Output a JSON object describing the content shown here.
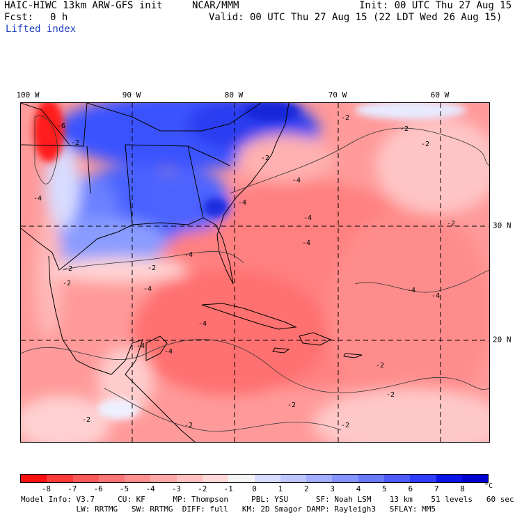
{
  "header": {
    "title": "HAIC-HIWC 13km ARW-GFS init",
    "org": "NCAR/MMM",
    "init": "Init: 00 UTC Thu 27 Aug 15",
    "fcst_label": "Fcst:",
    "fcst_value": "0 h",
    "valid": "Valid: 00 UTC Thu 27 Aug 15 (22 LDT Wed 26 Aug 15)",
    "field": "Lifted index"
  },
  "map": {
    "lon_labels": [
      "100 W",
      "90 W",
      "80 W",
      "70 W",
      "60 W"
    ],
    "lat_labels": [
      "30 N",
      "20 N"
    ],
    "contour_labels": [
      "-2",
      "-4",
      "-6"
    ]
  },
  "colorbar": {
    "ticks": [
      "-8",
      "-7",
      "-6",
      "-5",
      "-4",
      "-3",
      "-2",
      "-1",
      "0",
      "1",
      "2",
      "3",
      "4",
      "5",
      "6",
      "7",
      "8"
    ],
    "unit": "°C",
    "colors": [
      "#ff1010",
      "#ff3a3a",
      "#ff5a5a",
      "#ff7676",
      "#ff9090",
      "#ffa8a8",
      "#ffc0c0",
      "#ffd8d8",
      "#f4f4f4",
      "#d8dcff",
      "#bfc6ff",
      "#a3aeff",
      "#8694ff",
      "#6a7aff",
      "#4c5cff",
      "#2e3dff",
      "#0a14e6",
      "#0000d0"
    ]
  },
  "footer": {
    "line1": "Model Info: V3.7     CU: KF      MP: Thompson     PBL: YSU      SF: Noah LSM    13 km    51 levels   60 sec",
    "line2": "            LW: RRTMG   SW: RRTMG  DIFF: full   KM: 2D Smagor DAMP: Rayleigh3   SFLAY: MM5"
  }
}
